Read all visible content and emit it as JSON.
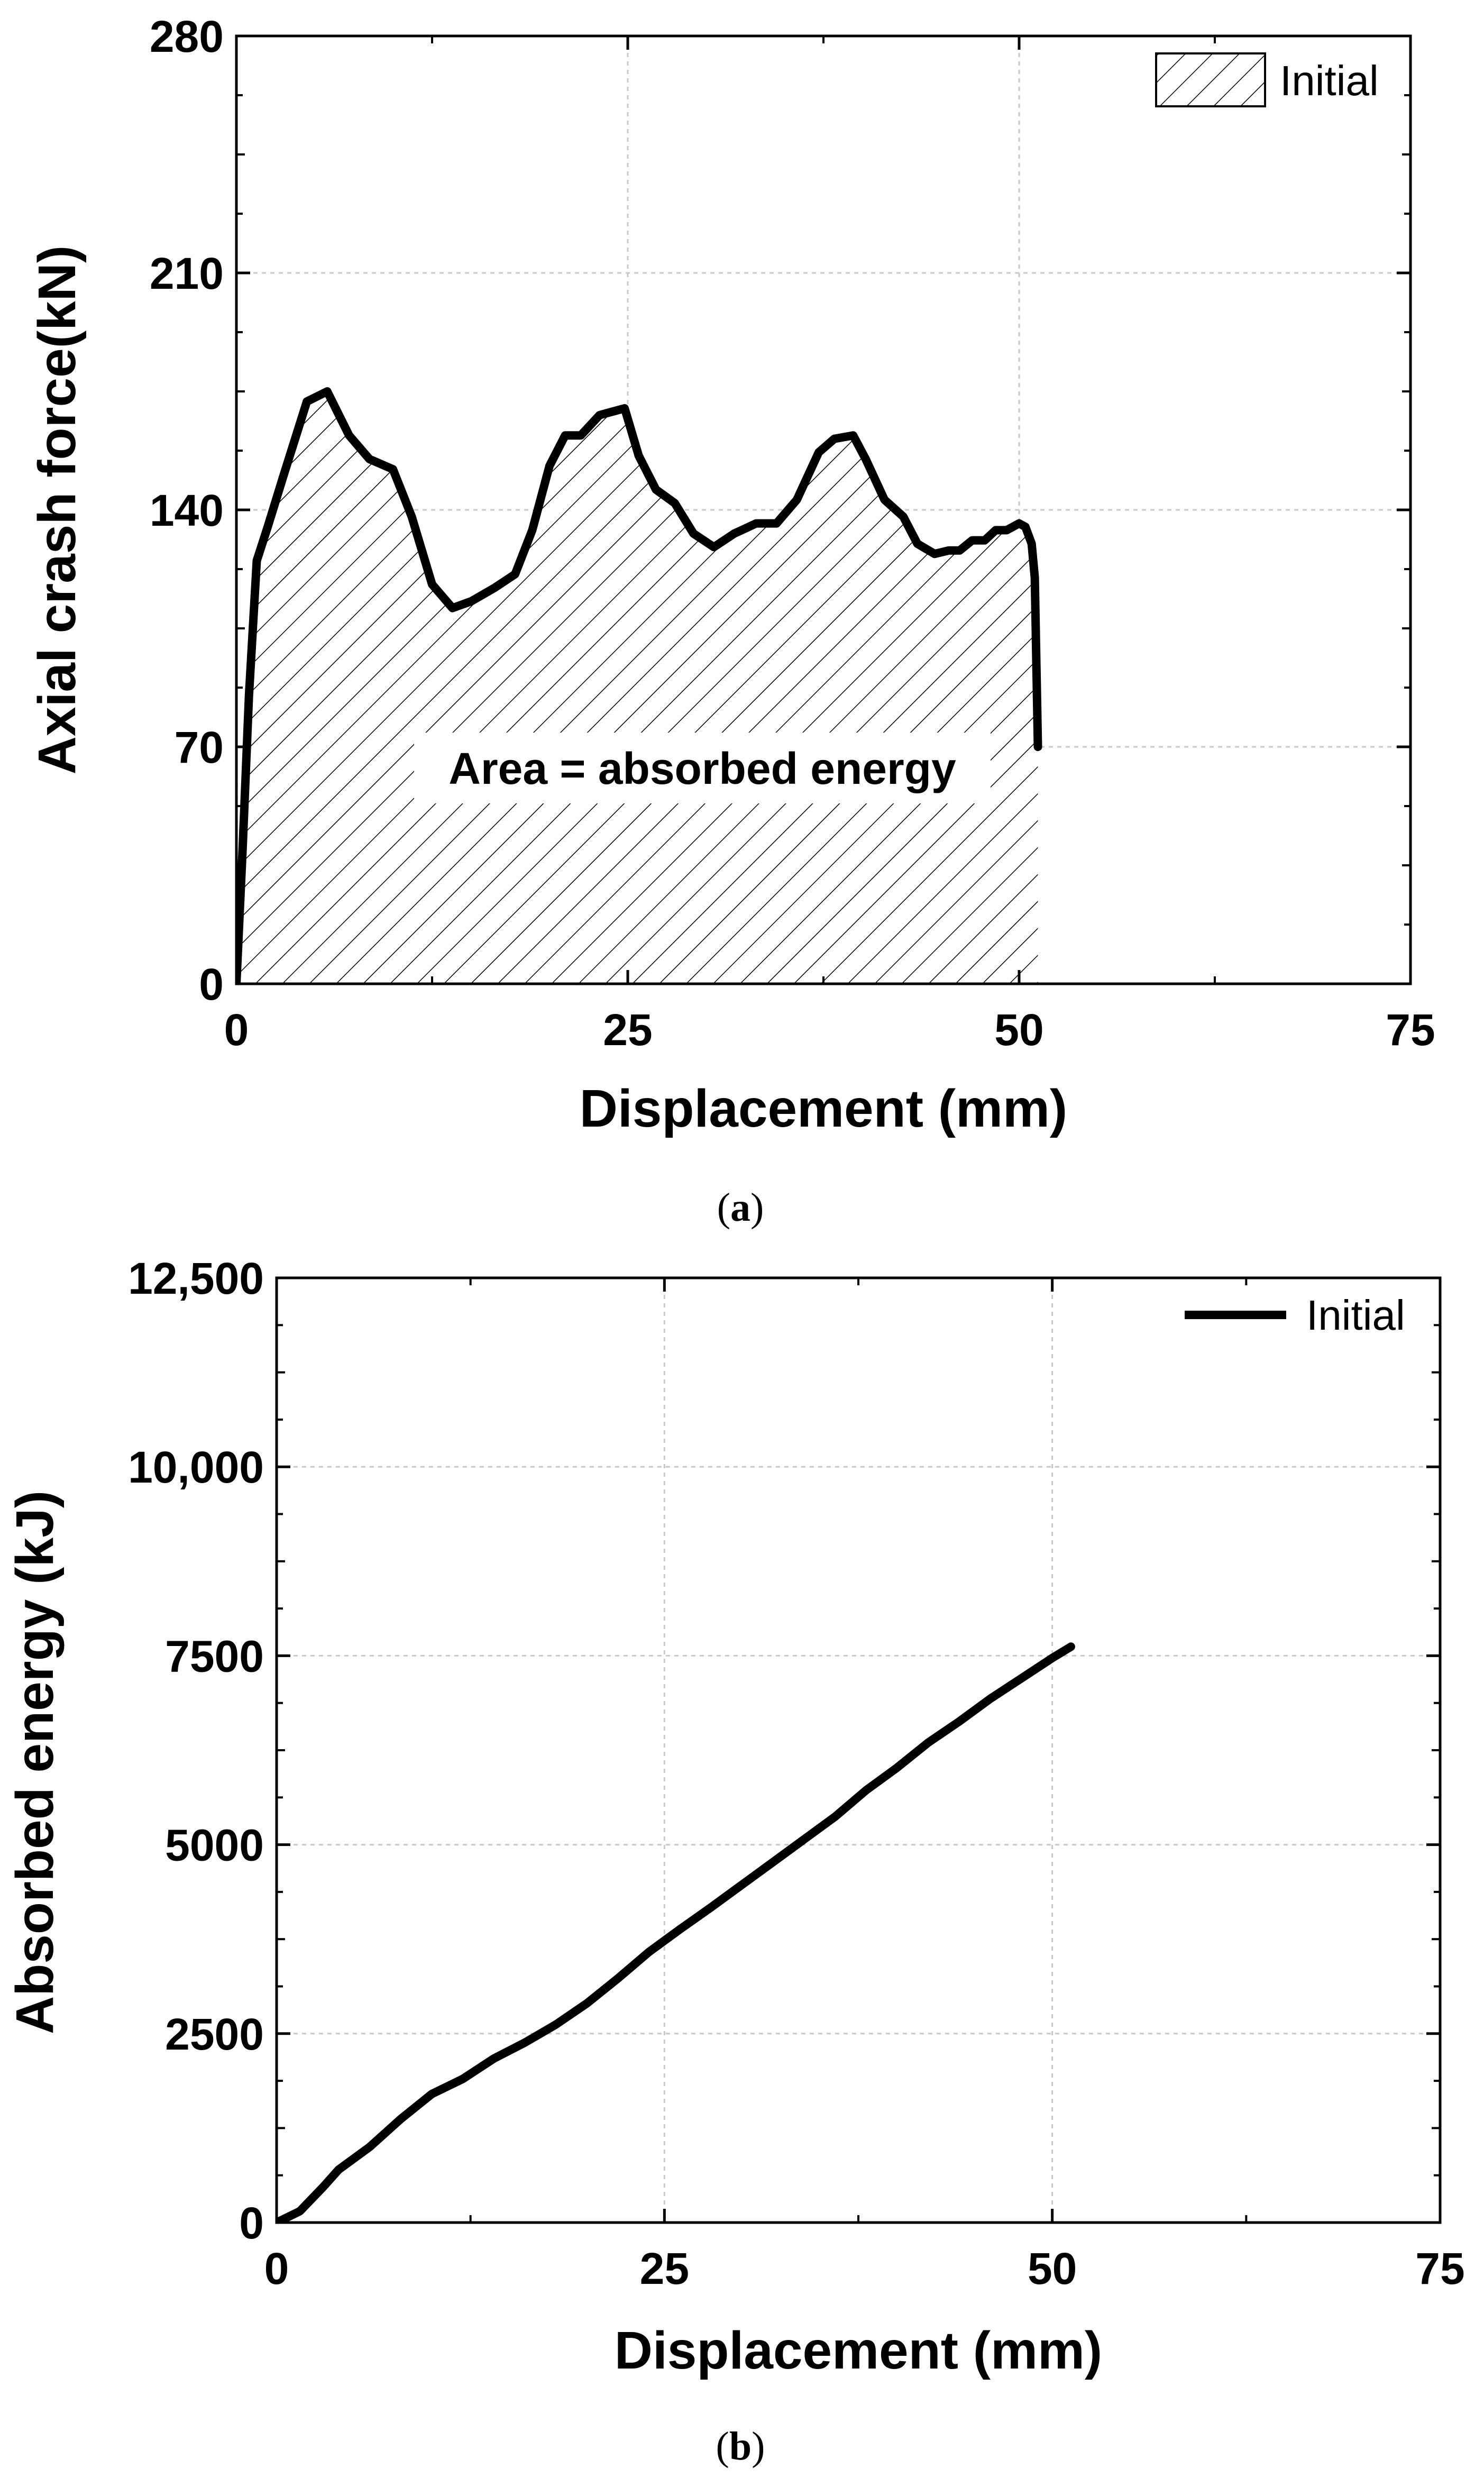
{
  "chart_data": [
    {
      "panel": "a",
      "caption_letter": "a",
      "type": "area",
      "xlabel": "Displacement (mm)",
      "ylabel": "Axial crash force(kN)",
      "xlim": [
        0,
        75
      ],
      "ylim": [
        0,
        280
      ],
      "xticks": [
        0,
        25,
        50,
        75
      ],
      "yticks": [
        0,
        70,
        140,
        210,
        280
      ],
      "grid": true,
      "legend": {
        "label": "Initial",
        "style": "hatched",
        "placement": "top-right"
      },
      "annotation": "Area = absorbed energy",
      "series": [
        {
          "name": "Initial",
          "x": [
            0,
            0.4,
            0.8,
            1.3,
            2,
            3,
            4.5,
            5.8,
            7.2,
            8.5,
            10,
            11.2,
            12.5,
            13.8,
            15,
            16.5,
            17.8,
            18.9,
            20,
            21,
            22,
            23.2,
            24.8,
            25.7,
            26.8,
            28,
            29.2,
            30.5,
            31.8,
            33.2,
            34.5,
            35.8,
            37.2,
            38.2,
            39.4,
            40.2,
            41.4,
            42.6,
            43.5,
            44.6,
            45.5,
            46.2,
            47,
            47.8,
            48.5,
            49.2,
            50,
            50.4,
            50.8,
            51,
            51.2
          ],
          "y": [
            0,
            40,
            85,
            125,
            135,
            150,
            172,
            175,
            162,
            155,
            152,
            138,
            118,
            111,
            113,
            117,
            121,
            134,
            153,
            162,
            162,
            168,
            170,
            156,
            146,
            142,
            133,
            129,
            133,
            136,
            136,
            143,
            157,
            161,
            162,
            155,
            143,
            138,
            130,
            127,
            128,
            128,
            131,
            131,
            134,
            134,
            136,
            135,
            130,
            120,
            70
          ]
        }
      ]
    },
    {
      "panel": "b",
      "caption_letter": "b",
      "type": "line",
      "xlabel": "Displacement (mm)",
      "ylabel": "Absorbed energy (kJ)",
      "xlim": [
        0,
        75
      ],
      "ylim": [
        0,
        12500
      ],
      "xticks": [
        0,
        25,
        50,
        75
      ],
      "yticks": [
        0,
        2500,
        5000,
        7500,
        10000,
        12500
      ],
      "ytick_labels": [
        "0",
        "2500",
        "5000",
        "7500",
        "10,000",
        "12,500"
      ],
      "grid": true,
      "legend": {
        "label": "Initial",
        "style": "line",
        "placement": "top-right"
      },
      "series": [
        {
          "name": "Initial",
          "x": [
            0,
            1.5,
            3,
            4,
            6,
            8,
            10,
            12,
            14,
            16,
            18,
            20,
            22,
            24,
            26,
            28,
            30,
            32,
            34,
            36,
            38,
            40,
            42,
            44,
            46,
            48,
            50,
            51.2
          ],
          "y": [
            0,
            150,
            470,
            700,
            1000,
            1370,
            1700,
            1900,
            2170,
            2380,
            2620,
            2900,
            3230,
            3580,
            3880,
            4170,
            4470,
            4770,
            5070,
            5370,
            5720,
            6020,
            6350,
            6630,
            6930,
            7200,
            7470,
            7620
          ]
        }
      ]
    }
  ]
}
